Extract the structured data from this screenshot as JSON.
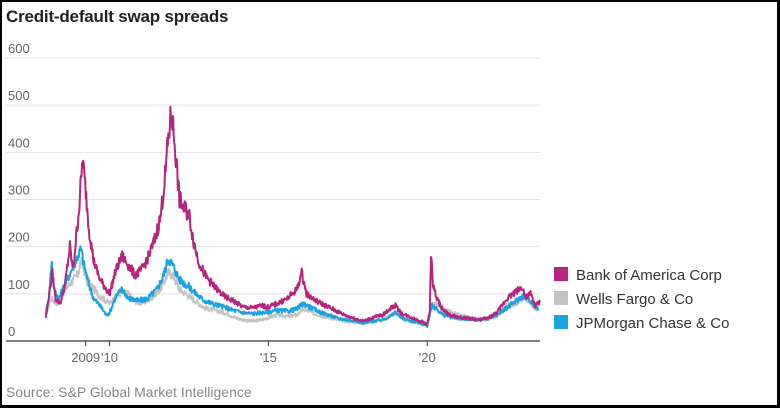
{
  "chart_data": {
    "type": "line",
    "title": "Credit-default swap spreads",
    "source": "Source: S&P Global Market Intelligence",
    "xlabel": "",
    "ylabel": "",
    "xlim": [
      2008.0,
      2023.55
    ],
    "ylim": [
      0,
      600
    ],
    "y_ticks": [
      0,
      100,
      200,
      300,
      400,
      500,
      600
    ],
    "x_ticks": [
      {
        "value": 2009.25,
        "label": "2009"
      },
      {
        "value": 2010.0,
        "label": "'10"
      },
      {
        "value": 2015.0,
        "label": "'15"
      },
      {
        "value": 2020.0,
        "label": "'20"
      }
    ],
    "grid": true,
    "legend_position": "right",
    "series": [
      {
        "name": "Wells Fargo & Co",
        "color": "#c4c4c4",
        "points": [
          [
            2008.0,
            55
          ],
          [
            2008.15,
            90
          ],
          [
            2008.35,
            80
          ],
          [
            2008.6,
            110
          ],
          [
            2008.8,
            125
          ],
          [
            2009.0,
            140
          ],
          [
            2009.1,
            170
          ],
          [
            2009.2,
            150
          ],
          [
            2009.3,
            125
          ],
          [
            2009.45,
            115
          ],
          [
            2009.7,
            95
          ],
          [
            2010.0,
            80
          ],
          [
            2010.3,
            100
          ],
          [
            2010.5,
            105
          ],
          [
            2010.8,
            85
          ],
          [
            2011.0,
            80
          ],
          [
            2011.3,
            90
          ],
          [
            2011.6,
            110
          ],
          [
            2011.85,
            145
          ],
          [
            2012.0,
            140
          ],
          [
            2012.2,
            110
          ],
          [
            2012.5,
            95
          ],
          [
            2012.8,
            80
          ],
          [
            2013.0,
            70
          ],
          [
            2013.3,
            65
          ],
          [
            2013.6,
            60
          ],
          [
            2013.8,
            55
          ],
          [
            2014.0,
            48
          ],
          [
            2014.2,
            45
          ],
          [
            2014.5,
            42
          ],
          [
            2014.8,
            45
          ],
          [
            2015.0,
            50
          ],
          [
            2015.3,
            55
          ],
          [
            2015.6,
            52
          ],
          [
            2015.9,
            55
          ],
          [
            2016.1,
            68
          ],
          [
            2016.3,
            62
          ],
          [
            2016.6,
            55
          ],
          [
            2016.9,
            50
          ],
          [
            2017.2,
            45
          ],
          [
            2017.5,
            42
          ],
          [
            2017.8,
            40
          ],
          [
            2018.0,
            38
          ],
          [
            2018.3,
            42
          ],
          [
            2018.6,
            45
          ],
          [
            2018.9,
            55
          ],
          [
            2019.0,
            60
          ],
          [
            2019.2,
            50
          ],
          [
            2019.5,
            45
          ],
          [
            2019.8,
            40
          ],
          [
            2020.0,
            35
          ],
          [
            2020.15,
            75
          ],
          [
            2020.3,
            80
          ],
          [
            2020.5,
            70
          ],
          [
            2020.7,
            62
          ],
          [
            2021.0,
            55
          ],
          [
            2021.3,
            50
          ],
          [
            2021.6,
            45
          ],
          [
            2021.9,
            45
          ],
          [
            2022.2,
            55
          ],
          [
            2022.5,
            75
          ],
          [
            2022.8,
            80
          ],
          [
            2023.0,
            90
          ],
          [
            2023.2,
            85
          ],
          [
            2023.4,
            70
          ],
          [
            2023.5,
            65
          ]
        ]
      },
      {
        "name": "JPMorgan Chase & Co",
        "color": "#1aa3e0",
        "points": [
          [
            2008.0,
            60
          ],
          [
            2008.1,
            100
          ],
          [
            2008.18,
            170
          ],
          [
            2008.25,
            110
          ],
          [
            2008.4,
            90
          ],
          [
            2008.6,
            120
          ],
          [
            2008.8,
            150
          ],
          [
            2009.0,
            180
          ],
          [
            2009.1,
            195
          ],
          [
            2009.2,
            160
          ],
          [
            2009.35,
            120
          ],
          [
            2009.5,
            90
          ],
          [
            2009.7,
            75
          ],
          [
            2009.9,
            55
          ],
          [
            2010.0,
            60
          ],
          [
            2010.2,
            95
          ],
          [
            2010.4,
            110
          ],
          [
            2010.6,
            90
          ],
          [
            2010.9,
            85
          ],
          [
            2011.2,
            90
          ],
          [
            2011.5,
            110
          ],
          [
            2011.7,
            140
          ],
          [
            2011.85,
            175
          ],
          [
            2012.0,
            160
          ],
          [
            2012.2,
            130
          ],
          [
            2012.5,
            115
          ],
          [
            2012.8,
            95
          ],
          [
            2013.0,
            85
          ],
          [
            2013.3,
            78
          ],
          [
            2013.6,
            72
          ],
          [
            2013.9,
            65
          ],
          [
            2014.2,
            60
          ],
          [
            2014.5,
            58
          ],
          [
            2014.8,
            60
          ],
          [
            2015.0,
            62
          ],
          [
            2015.3,
            65
          ],
          [
            2015.6,
            63
          ],
          [
            2015.9,
            68
          ],
          [
            2016.1,
            80
          ],
          [
            2016.3,
            72
          ],
          [
            2016.6,
            62
          ],
          [
            2016.9,
            55
          ],
          [
            2017.2,
            48
          ],
          [
            2017.5,
            45
          ],
          [
            2017.8,
            42
          ],
          [
            2018.0,
            38
          ],
          [
            2018.3,
            42
          ],
          [
            2018.6,
            45
          ],
          [
            2018.9,
            55
          ],
          [
            2019.0,
            62
          ],
          [
            2019.2,
            48
          ],
          [
            2019.5,
            42
          ],
          [
            2019.8,
            38
          ],
          [
            2020.0,
            32
          ],
          [
            2020.15,
            75
          ],
          [
            2020.3,
            68
          ],
          [
            2020.5,
            55
          ],
          [
            2020.7,
            52
          ],
          [
            2021.0,
            48
          ],
          [
            2021.3,
            45
          ],
          [
            2021.6,
            45
          ],
          [
            2021.9,
            48
          ],
          [
            2022.2,
            55
          ],
          [
            2022.5,
            70
          ],
          [
            2022.8,
            85
          ],
          [
            2023.0,
            95
          ],
          [
            2023.2,
            90
          ],
          [
            2023.4,
            72
          ],
          [
            2023.5,
            68
          ]
        ]
      },
      {
        "name": "Bank of America Corp",
        "color": "#b5247d",
        "points": [
          [
            2008.0,
            50
          ],
          [
            2008.1,
            100
          ],
          [
            2008.2,
            145
          ],
          [
            2008.3,
            90
          ],
          [
            2008.45,
            80
          ],
          [
            2008.6,
            120
          ],
          [
            2008.75,
            200
          ],
          [
            2008.85,
            150
          ],
          [
            2008.95,
            220
          ],
          [
            2009.05,
            290
          ],
          [
            2009.15,
            385
          ],
          [
            2009.25,
            320
          ],
          [
            2009.35,
            240
          ],
          [
            2009.5,
            170
          ],
          [
            2009.7,
            130
          ],
          [
            2009.9,
            110
          ],
          [
            2010.0,
            100
          ],
          [
            2010.2,
            150
          ],
          [
            2010.4,
            180
          ],
          [
            2010.6,
            160
          ],
          [
            2010.8,
            140
          ],
          [
            2011.0,
            150
          ],
          [
            2011.2,
            175
          ],
          [
            2011.4,
            210
          ],
          [
            2011.6,
            260
          ],
          [
            2011.75,
            350
          ],
          [
            2011.85,
            430
          ],
          [
            2011.95,
            485
          ],
          [
            2012.05,
            420
          ],
          [
            2012.2,
            300
          ],
          [
            2012.35,
            280
          ],
          [
            2012.5,
            270
          ],
          [
            2012.65,
            210
          ],
          [
            2012.8,
            170
          ],
          [
            2013.0,
            140
          ],
          [
            2013.3,
            115
          ],
          [
            2013.6,
            95
          ],
          [
            2013.9,
            85
          ],
          [
            2014.2,
            72
          ],
          [
            2014.5,
            70
          ],
          [
            2014.8,
            75
          ],
          [
            2015.0,
            72
          ],
          [
            2015.3,
            80
          ],
          [
            2015.6,
            90
          ],
          [
            2015.9,
            110
          ],
          [
            2016.05,
            145
          ],
          [
            2016.2,
            100
          ],
          [
            2016.5,
            85
          ],
          [
            2016.8,
            75
          ],
          [
            2017.1,
            65
          ],
          [
            2017.4,
            55
          ],
          [
            2017.7,
            48
          ],
          [
            2018.0,
            42
          ],
          [
            2018.3,
            50
          ],
          [
            2018.6,
            55
          ],
          [
            2018.85,
            70
          ],
          [
            2019.0,
            75
          ],
          [
            2019.2,
            58
          ],
          [
            2019.5,
            50
          ],
          [
            2019.8,
            42
          ],
          [
            2020.0,
            35
          ],
          [
            2020.08,
            65
          ],
          [
            2020.12,
            185
          ],
          [
            2020.18,
            120
          ],
          [
            2020.3,
            90
          ],
          [
            2020.5,
            65
          ],
          [
            2020.7,
            55
          ],
          [
            2021.0,
            50
          ],
          [
            2021.3,
            48
          ],
          [
            2021.6,
            45
          ],
          [
            2021.9,
            48
          ],
          [
            2022.2,
            60
          ],
          [
            2022.5,
            90
          ],
          [
            2022.7,
            100
          ],
          [
            2022.9,
            110
          ],
          [
            2023.0,
            115
          ],
          [
            2023.1,
            90
          ],
          [
            2023.25,
            100
          ],
          [
            2023.4,
            75
          ],
          [
            2023.55,
            82
          ]
        ]
      }
    ],
    "legend": [
      {
        "name": "Bank of America Corp",
        "color": "#b5247d"
      },
      {
        "name": "Wells Fargo & Co",
        "color": "#c4c4c4"
      },
      {
        "name": "JPMorgan Chase & Co",
        "color": "#1aa3e0"
      }
    ]
  }
}
